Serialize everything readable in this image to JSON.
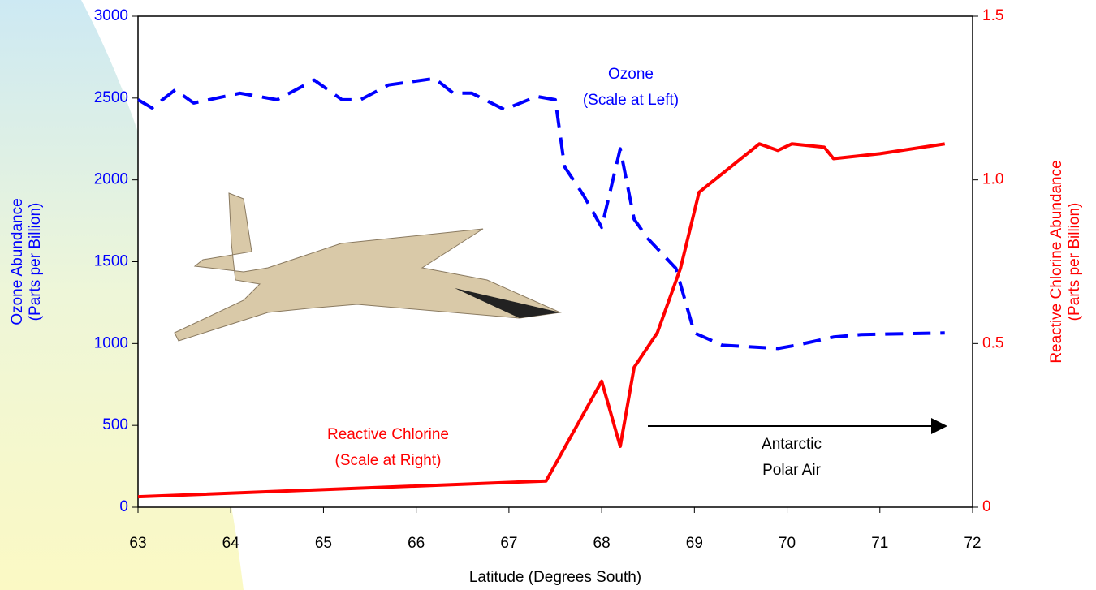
{
  "chart_data": {
    "type": "line",
    "xlabel": "Latitude (Degrees South)",
    "ylabel": [
      "Ozone Abundance",
      "(Parts per Billion)"
    ],
    "y2label": [
      "Reactive Chlorine Abundance",
      "(Parts per Billion)"
    ],
    "xlim": [
      63,
      72
    ],
    "xticks": [
      63,
      64,
      65,
      66,
      67,
      68,
      69,
      70,
      71,
      72
    ],
    "ylim": [
      0,
      3000
    ],
    "yticks": [
      0,
      500,
      1000,
      1500,
      2000,
      2500,
      3000
    ],
    "y2lim": [
      0,
      1.5
    ],
    "y2ticks": [
      0,
      0.5,
      {
        "value": 1,
        "label": "1.0"
      },
      1.5
    ],
    "series": [
      {
        "color": "#0000ff",
        "linestyle": "dashed",
        "x": [
          63.0,
          63.15,
          63.4,
          63.6,
          64.1,
          64.5,
          64.9,
          65.2,
          65.4,
          65.7,
          66.2,
          66.4,
          66.6,
          66.95,
          67.3,
          67.5,
          67.6,
          67.8,
          68.0,
          68.2,
          68.35,
          68.5,
          68.8,
          69.0,
          69.3,
          69.9,
          70.1,
          70.5,
          70.8,
          71.7
        ],
        "values": [
          2490,
          2440,
          2550,
          2470,
          2530,
          2490,
          2610,
          2490,
          2490,
          2580,
          2620,
          2530,
          2530,
          2430,
          2510,
          2490,
          2080,
          1910,
          1710,
          2190,
          1760,
          1640,
          1460,
          1065,
          990,
          970,
          990,
          1040,
          1055,
          1065
        ]
      },
      {
        "color": "#ff0000",
        "linestyle": "solid",
        "axis": "y2",
        "x": [
          63.0,
          67.4,
          68.0,
          68.2,
          68.35,
          68.6,
          68.85,
          69.05,
          69.7,
          69.9,
          70.05,
          70.4,
          70.5,
          71.0,
          71.7
        ],
        "values": [
          0.032,
          0.08,
          0.385,
          0.186,
          0.427,
          0.533,
          0.73,
          0.962,
          1.11,
          1.09,
          1.11,
          1.1,
          1.065,
          1.08,
          1.11
        ]
      }
    ],
    "annotations": [
      {
        "lines": [
          "Ozone",
          "(Scale at Left)"
        ],
        "color": "#0000ff"
      },
      {
        "lines": [
          "Reactive Chlorine",
          "(Scale at Right)"
        ],
        "color": "#ff0000"
      },
      {
        "lines": [
          "Antarctic",
          "Polar Air"
        ],
        "color": "#000000"
      }
    ]
  }
}
